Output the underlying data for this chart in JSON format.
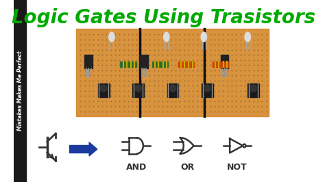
{
  "title": "Logic Gates Using Trasistors",
  "title_color": "#00aa00",
  "title_fontsize": 20,
  "title_style": "italic",
  "title_weight": "bold",
  "bg_color": "#ffffff",
  "sidebar_text": "Mistakes Makes Me Perfect",
  "sidebar_text_color": "#ffffff",
  "sidebar_bg": "#1a1a1a",
  "arrow_color": "#1a3a9e",
  "gate_color": "#333333",
  "gate_linewidth": 1.8,
  "label_color": "#333333",
  "label_fontsize": 9,
  "label_weight": "bold",
  "and_label": "AND",
  "or_label": "OR",
  "not_label": "NOT"
}
